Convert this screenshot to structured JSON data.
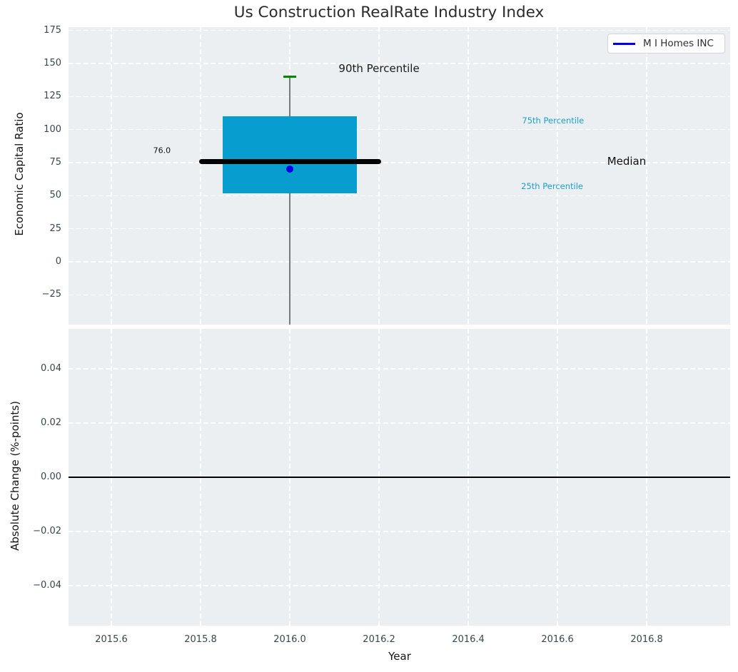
{
  "title": "Us Construction RealRate Industry Index",
  "chart_data": [
    {
      "type": "box",
      "title": "Us Construction RealRate Industry Index",
      "ylabel": "Economic Capital Ratio",
      "xlabel": "",
      "legend": [
        {
          "label": "M I Homes INC",
          "color": "#0000E6"
        }
      ],
      "legend_position": "upper right",
      "background": "#ECEFF1",
      "grid": "white dashed, horizontal and vertical",
      "ylim": [
        -47.5,
        177.5
      ],
      "yticks": [
        {
          "value": 175,
          "label": "175"
        },
        {
          "value": 150,
          "label": "150"
        },
        {
          "value": 125,
          "label": "125"
        },
        {
          "value": 100,
          "label": "100"
        },
        {
          "value": 75,
          "label": "75"
        },
        {
          "value": 50,
          "label": "50"
        },
        {
          "value": 25,
          "label": "25"
        },
        {
          "value": 0,
          "label": "0"
        },
        {
          "value": -25,
          "label": "−25"
        }
      ],
      "x_center": 2016.0,
      "box": {
        "p90": 140,
        "p75": 110,
        "median": 76.0,
        "p25": 52,
        "p10": "below visible axis (whisker clipped at plot bottom)",
        "company_value": 70,
        "median_label": "76.0",
        "box_x_span": [
          2015.85,
          2016.15
        ],
        "median_x_span": [
          2015.796,
          2016.204
        ],
        "cap_x_span": [
          2015.986,
          2016.014
        ]
      },
      "colors": {
        "box_fill": "#089DCF",
        "median_line": "#000000",
        "p90_cap": "#008A00",
        "whisker": "#7A7A7A",
        "company_dot": "#0000E6",
        "percentile_text": "#1A9FD4"
      },
      "annotations": [
        {
          "name": "p90-annotation",
          "text": "90th Percentile",
          "x": 2016.2,
          "y": 146,
          "color": "#1a1a1a",
          "size": 15,
          "align": "center"
        },
        {
          "name": "p75-annotation",
          "text": "75th Percentile",
          "x": 2016.59,
          "y": 107,
          "color": "#1A9FD4",
          "size": 11.5,
          "align": "center"
        },
        {
          "name": "median-annotation",
          "text": "Median",
          "x": 2016.755,
          "y": 76,
          "color": "#111111",
          "size": 15,
          "align": "center"
        },
        {
          "name": "p25-annotation",
          "text": "25th Percentile",
          "x": 2016.588,
          "y": 57,
          "color": "#1A9FD4",
          "size": 11.5,
          "align": "center"
        },
        {
          "name": "median-value-label",
          "text": "76.0",
          "x": 2015.733,
          "y": 84,
          "color": "#111111",
          "size": 11,
          "align": "right"
        }
      ]
    },
    {
      "type": "line",
      "title": "",
      "ylabel": "Absolute Change (%-points)",
      "xlabel": "Year",
      "background": "#ECEFF1",
      "ylim": [
        -0.0547,
        0.0547
      ],
      "yticks": [
        {
          "value": 0.04,
          "label": "0.04"
        },
        {
          "value": 0.02,
          "label": "0.02"
        },
        {
          "value": 0.0,
          "label": "0.00"
        },
        {
          "value": -0.02,
          "label": "−0.02"
        },
        {
          "value": -0.04,
          "label": "−0.04"
        }
      ],
      "zero_line": 0.0,
      "series": [
        {
          "name": "M I Homes INC",
          "x": [],
          "values": [],
          "note": "no visible data points; only the black zero reference line is drawn"
        }
      ]
    }
  ],
  "shared_x": {
    "xlim": [
      2015.504,
      2016.987
    ],
    "xticks": [
      {
        "value": 2015.6,
        "label": "2015.6"
      },
      {
        "value": 2015.8,
        "label": "2015.8"
      },
      {
        "value": 2016.0,
        "label": "2016.0"
      },
      {
        "value": 2016.2,
        "label": "2016.2"
      },
      {
        "value": 2016.4,
        "label": "2016.4"
      },
      {
        "value": 2016.6,
        "label": "2016.6"
      },
      {
        "value": 2016.8,
        "label": "2016.8"
      }
    ]
  }
}
